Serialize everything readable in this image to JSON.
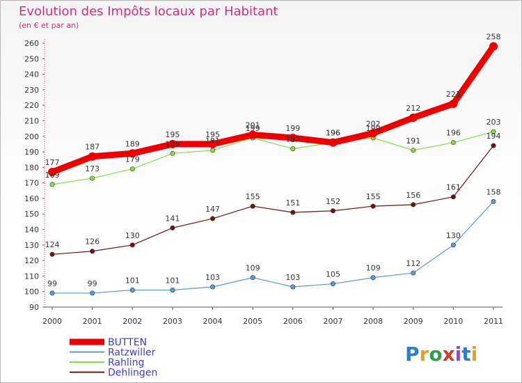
{
  "chart_data": {
    "type": "line",
    "title": "Evolution des Impôts locaux par Habitant",
    "subtitle": "(en € et par an)",
    "xlabel": "",
    "ylabel": "",
    "categories": [
      "2000",
      "2001",
      "2002",
      "2003",
      "2004",
      "2005",
      "2006",
      "2007",
      "2008",
      "2009",
      "2010",
      "2011"
    ],
    "ylim": [
      90,
      260
    ],
    "yticks": [
      90,
      100,
      110,
      120,
      130,
      140,
      150,
      160,
      170,
      180,
      190,
      200,
      210,
      220,
      230,
      240,
      250,
      260
    ],
    "grid": false,
    "legend_position": "bottom-left",
    "series": [
      {
        "name": "BUTTEN",
        "color": "#ee0000",
        "values": [
          177,
          187,
          189,
          195,
          195,
          201,
          199,
          196,
          202,
          212,
          221,
          258
        ]
      },
      {
        "name": "Ratzwiller",
        "color": "#5a9ad6",
        "values": [
          99,
          99,
          101,
          101,
          103,
          109,
          103,
          105,
          109,
          112,
          130,
          158
        ]
      },
      {
        "name": "Rahling",
        "color": "#88dd44",
        "values": [
          169,
          173,
          179,
          189,
          191,
          199,
          192,
          196,
          199,
          191,
          196,
          203
        ]
      },
      {
        "name": "Dehlingen",
        "color": "#6b1414",
        "values": [
          124,
          126,
          130,
          141,
          147,
          155,
          151,
          152,
          155,
          156,
          161,
          194
        ]
      }
    ],
    "data_labels": [
      [
        "177",
        "187",
        "189",
        "195",
        "195",
        "201",
        "199",
        "196",
        "202",
        "212",
        "221",
        "258"
      ],
      [
        "99",
        "99",
        "101",
        "101",
        "103",
        "109",
        "103",
        "105",
        "109",
        "112",
        "130",
        "158"
      ],
      [
        "169",
        "173",
        "179",
        "189",
        "191",
        "199",
        "192",
        "196",
        "199",
        "191",
        "196",
        "203"
      ],
      [
        "124",
        "126",
        "130",
        "141",
        "147",
        "155",
        "151",
        "152",
        "155",
        "156",
        "161",
        "194"
      ]
    ]
  },
  "branding": {
    "logo_text": "Proxiti",
    "logo_letters": [
      "P",
      "r",
      "o",
      "x",
      "i",
      "t",
      "i"
    ],
    "logo_colors": [
      "#2a7fd4",
      "#e8a020",
      "#2ea24a",
      "#d43a2a",
      "#8a4fc0",
      "#2a7fd4",
      "#e8a020"
    ]
  }
}
